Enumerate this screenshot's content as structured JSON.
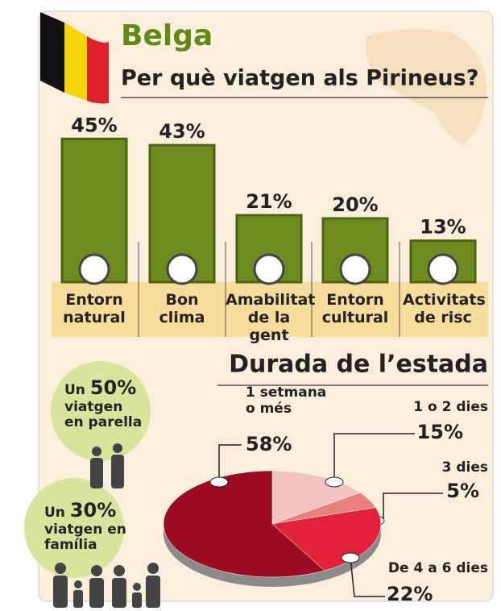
{
  "heading": "Belga",
  "chart_data": [
    {
      "type": "bar",
      "title": "Per què viatgen als Pirineus?",
      "categories": [
        "Entorn natural",
        "Bon clima",
        "Amabilitat de la gent",
        "Entorn cultural",
        "Activitats de risc"
      ],
      "values": [
        45,
        43,
        21,
        20,
        13
      ],
      "value_labels": [
        "45%",
        "43%",
        "21%",
        "20%",
        "13%"
      ],
      "color": "#6e8b1f"
    },
    {
      "type": "pie",
      "title": "Durada de l’estada",
      "categories": [
        "1 o 2 dies",
        "3 dies",
        "De 4 a 6 dies",
        "1 setmana o més"
      ],
      "values": [
        15,
        5,
        22,
        58
      ],
      "value_labels": [
        "15%",
        "5%",
        "22%",
        "58%"
      ],
      "colors": [
        "#f2c4bf",
        "#e8807c",
        "#e2213b",
        "#9c0c20"
      ]
    }
  ],
  "callouts": [
    {
      "lead": "Un",
      "share": "50%",
      "text": "viatgen en parella"
    },
    {
      "lead": "Un",
      "share": "30%",
      "text": "viatgen en família"
    }
  ]
}
